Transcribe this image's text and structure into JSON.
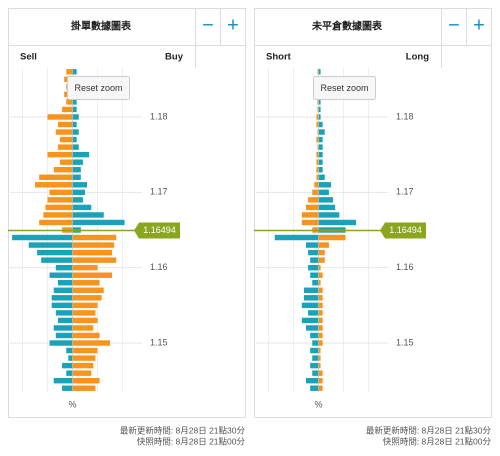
{
  "chart_data": [
    {
      "type": "diverging-bar",
      "title": "掛單數據圖表",
      "zoom_out": "−",
      "zoom_in": "+",
      "reset_label": "Reset zoom",
      "xlabel": "%",
      "updated": "最新更新時間: 8月28日 21點30分",
      "snapshot": "快照時間: 8月28日 21點00分",
      "current_price": 1.16494,
      "current_color": "#8aa61e",
      "ylim": [
        1.1435,
        1.1865
      ],
      "yticks": [
        1.15,
        1.16,
        1.17,
        1.18
      ],
      "xlim": [
        -3,
        3
      ],
      "grid": true,
      "prices": [
        1.186,
        1.185,
        1.184,
        1.183,
        1.182,
        1.181,
        1.18,
        1.179,
        1.178,
        1.177,
        1.176,
        1.175,
        1.174,
        1.173,
        1.172,
        1.171,
        1.17,
        1.169,
        1.168,
        1.167,
        1.166,
        1.165,
        1.164,
        1.163,
        1.162,
        1.161,
        1.16,
        1.159,
        1.158,
        1.157,
        1.156,
        1.155,
        1.154,
        1.153,
        1.152,
        1.151,
        1.15,
        1.149,
        1.148,
        1.147,
        1.146,
        1.145,
        1.144
      ],
      "series": [
        {
          "name": "Sell",
          "side": "left",
          "color_above": "#f7941d",
          "color_below": "#1aa3b8",
          "values": [
            0.3,
            0.4,
            0.3,
            0.4,
            0.3,
            0.5,
            1.2,
            0.7,
            0.8,
            0.6,
            0.7,
            1.2,
            0.6,
            0.9,
            1.6,
            1.8,
            1.1,
            1.2,
            1.3,
            1.4,
            1.6,
            0.5,
            2.9,
            2.1,
            1.7,
            1.5,
            0.8,
            1.1,
            0.7,
            0.9,
            1.0,
            1.0,
            0.8,
            0.7,
            0.9,
            0.8,
            1.1,
            0.3,
            0.2,
            0.5,
            0.3,
            0.9,
            0.5
          ]
        },
        {
          "name": "Buy",
          "side": "right",
          "color_above": "#1aa3b8",
          "color_below": "#f7941d",
          "values": [
            0.2,
            0.1,
            0.1,
            0.1,
            0.2,
            0.2,
            0.3,
            0.2,
            0.3,
            0.2,
            0.3,
            0.8,
            0.5,
            0.4,
            0.4,
            0.7,
            0.6,
            0.5,
            0.9,
            1.5,
            2.5,
            0.4,
            2.1,
            2.0,
            1.9,
            2.1,
            1.2,
            1.9,
            1.3,
            1.5,
            1.4,
            1.2,
            1.1,
            1.2,
            1.0,
            1.3,
            1.8,
            1.2,
            1.1,
            1.0,
            0.9,
            1.3,
            1.1
          ]
        }
      ]
    },
    {
      "type": "diverging-bar",
      "title": "未平倉數據圖表",
      "zoom_out": "−",
      "zoom_in": "+",
      "reset_label": "Reset zoom",
      "xlabel": "%",
      "updated": "最新更新時間: 8月28日 21點30分",
      "snapshot": "快照時間: 8月28日 21點00分",
      "current_price": 1.16494,
      "current_color": "#8aa61e",
      "ylim": [
        1.1435,
        1.1865
      ],
      "yticks": [
        1.15,
        1.16,
        1.17,
        1.18
      ],
      "xlim": [
        -3,
        3
      ],
      "grid": true,
      "prices": [
        1.186,
        1.185,
        1.184,
        1.183,
        1.182,
        1.181,
        1.18,
        1.179,
        1.178,
        1.177,
        1.176,
        1.175,
        1.174,
        1.173,
        1.172,
        1.171,
        1.17,
        1.169,
        1.168,
        1.167,
        1.166,
        1.165,
        1.164,
        1.163,
        1.162,
        1.161,
        1.16,
        1.159,
        1.158,
        1.157,
        1.156,
        1.155,
        1.154,
        1.153,
        1.152,
        1.151,
        1.15,
        1.149,
        1.148,
        1.147,
        1.146,
        1.145,
        1.144
      ],
      "series": [
        {
          "name": "Short",
          "side": "left",
          "color_above": "#f7941d",
          "color_below": "#1aa3b8",
          "values": [
            0.05,
            0.05,
            0.05,
            0.05,
            0.05,
            0.05,
            0.1,
            0.1,
            0.05,
            0.1,
            0.05,
            0.1,
            0.1,
            0.1,
            0.1,
            0.2,
            0.3,
            0.5,
            0.6,
            0.8,
            0.8,
            0.3,
            2.1,
            0.6,
            0.5,
            0.4,
            0.5,
            0.4,
            0.3,
            0.7,
            0.7,
            0.8,
            0.5,
            0.8,
            0.6,
            0.4,
            0.3,
            0.4,
            0.3,
            0.4,
            0.3,
            0.6,
            0.4
          ]
        },
        {
          "name": "Long",
          "side": "right",
          "color_above": "#1aa3b8",
          "color_below": "#f7941d",
          "values": [
            0.1,
            0.1,
            0.05,
            0.1,
            0.1,
            0.1,
            0.1,
            0.2,
            0.3,
            0.2,
            0.2,
            0.2,
            0.2,
            0.2,
            0.3,
            0.6,
            0.5,
            0.7,
            0.8,
            1.0,
            1.8,
            1.3,
            1.3,
            0.5,
            0.3,
            0.3,
            0.1,
            0.2,
            0.1,
            0.2,
            0.2,
            0.2,
            0.2,
            0.2,
            0.2,
            0.2,
            0.2,
            0.1,
            0.1,
            0.1,
            0.2,
            0.2,
            0.2
          ]
        }
      ]
    }
  ]
}
